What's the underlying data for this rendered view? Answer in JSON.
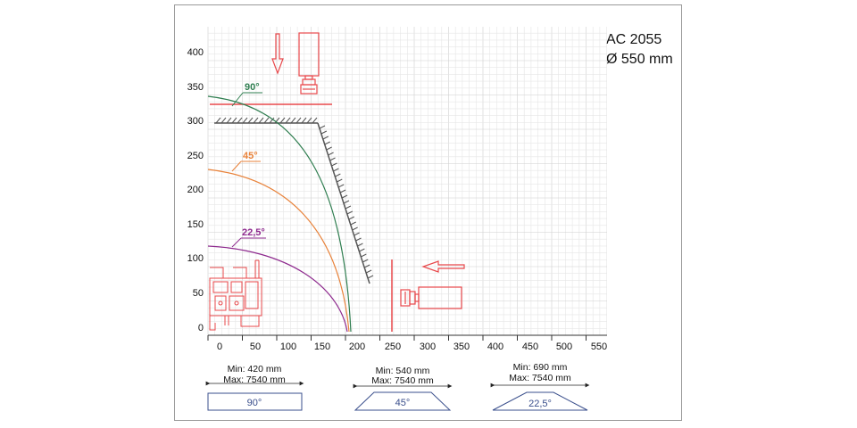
{
  "header": {
    "model": "AC 2055",
    "diameter": "Ø 550 mm"
  },
  "axes": {
    "y_ticks": [
      "400",
      "350",
      "300",
      "250",
      "200",
      "150",
      "100",
      "50",
      "0"
    ],
    "x_ticks": [
      "0",
      "50",
      "100",
      "150",
      "200",
      "250",
      "300",
      "350",
      "400",
      "450",
      "500",
      "550"
    ]
  },
  "arcs": [
    {
      "label": "90°",
      "color": "#2e7d4f",
      "y_at_x0": 338
    },
    {
      "label": "45°",
      "color": "#e8823a",
      "y_at_x0": 233
    },
    {
      "label": "22,5°",
      "color": "#8e2a8e",
      "y_at_x0": 120
    }
  ],
  "colors": {
    "machine": "#e8484b",
    "grid_minor": "#e6e6e6",
    "grid_major": "#cfcfcf",
    "guard": "#555555",
    "spec_box": "#3a4f8c"
  },
  "specs": [
    {
      "min": "Min: 420 mm",
      "max": "Max: 7540 mm",
      "angle": "90°",
      "shape": "rectangle"
    },
    {
      "min": "Min: 540 mm",
      "max": "Max: 7540 mm",
      "angle": "45°",
      "shape": "trapezoid"
    },
    {
      "min": "Min: 690 mm",
      "max": "Max: 7540 mm",
      "angle": "22,5°",
      "shape": "triangle"
    }
  ]
}
